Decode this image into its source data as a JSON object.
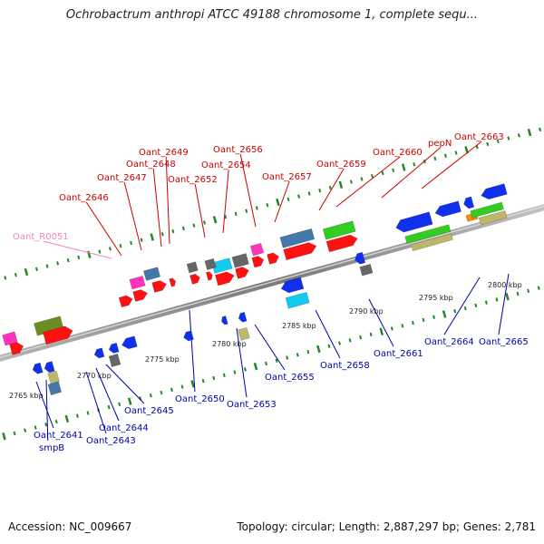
{
  "title": "Ochrobactrum anthropi ATCC 49188 chromosome 1, complete sequ...",
  "footer": {
    "accession": "Accession: NC_009667",
    "summary": "Topology: circular; Length: 2,887,297 bp; Genes: 2,781"
  },
  "colors": {
    "forward_label": "#cc0000",
    "reverse_label": "#0000aa",
    "rna_label": "#ee88bb",
    "backbone": "#888888",
    "tick": "#228822",
    "red": "#ff1111",
    "blue": "#1030ee",
    "pink": "#ff33bb",
    "grey": "#666666",
    "steel": "#4477aa",
    "cyan": "#11ccee",
    "green": "#33cc22",
    "olive": "#6b8e23",
    "khaki": "#bdb76b",
    "orange": "#ff8800"
  },
  "scale_labels": [
    "2765 kbp",
    "2770 kbp",
    "2775 kbp",
    "2780 kbp",
    "2785 kbp",
    "2790 kbp",
    "2795 kbp",
    "2800 kbp"
  ],
  "forward_genes": [
    "Oant_R0051",
    "Oant_2646",
    "Oant_2647",
    "Oant_2648",
    "Oant_2649",
    "Oant_2652",
    "Oant_2654",
    "Oant_2656",
    "Oant_2657",
    "Oant_2659",
    "Oant_2660",
    "pepN",
    "Oant_2663"
  ],
  "reverse_genes": [
    "Oant_2641",
    "smpB",
    "Oant_2643",
    "Oant_2644",
    "Oant_2645",
    "Oant_2650",
    "Oant_2653",
    "Oant_2655",
    "Oant_2658",
    "Oant_2661",
    "Oant_2664",
    "Oant_2665"
  ]
}
